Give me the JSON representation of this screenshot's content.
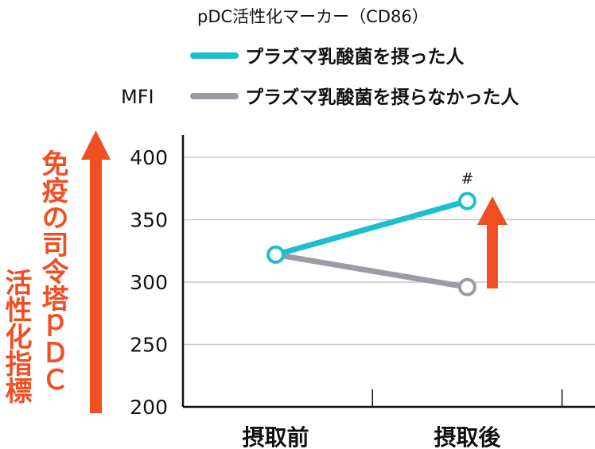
{
  "chart_data": {
    "type": "line",
    "title": "pDC活性化マーカー（CD86）",
    "ylabel": "MFI",
    "categories": [
      "摂取前",
      "摂取後"
    ],
    "ylim": [
      200,
      400
    ],
    "yticks": [
      200,
      250,
      300,
      350,
      400
    ],
    "grid": true,
    "legend_position": "top",
    "series": [
      {
        "name": "プラズマ乳酸菌を摂った人",
        "values": [
          322,
          365
        ],
        "color": "#1dbfcf",
        "annotations": [
          "",
          "#"
        ]
      },
      {
        "name": "プラズマ乳酸菌を摂らなかった人",
        "values": [
          322,
          296
        ],
        "color": "#9b9ba3",
        "annotations": [
          "",
          ""
        ]
      }
    ],
    "side_label_line1": "免疫の司令塔ｐＤＣ",
    "side_label_line2": "活性化指標",
    "accent_color": "#f04e23",
    "arrows": [
      "up-arrow-icon",
      "increase-arrow-icon"
    ]
  }
}
